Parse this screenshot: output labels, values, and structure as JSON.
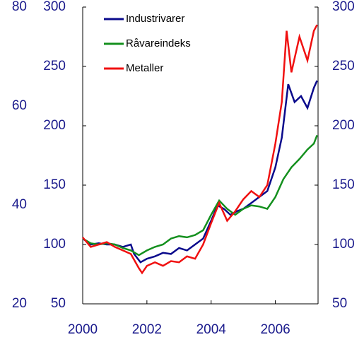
{
  "chart_data": {
    "type": "line",
    "xlim": [
      2000,
      2007.33
    ],
    "xticks": [
      2000,
      2002,
      2004,
      2006
    ],
    "ylim": [
      50,
      300
    ],
    "yticks": [
      50,
      100,
      150,
      200,
      250,
      300
    ],
    "y2lim": [
      50,
      300
    ],
    "y2ticks": [
      50,
      100,
      150,
      200,
      250,
      300
    ],
    "y3lim": [
      20,
      80
    ],
    "y3ticks": [
      20,
      40,
      60,
      80
    ],
    "legend": "upper left",
    "series": [
      {
        "name": "Industrivarer",
        "color": "#0a0a8c",
        "x": [
          2000,
          2000.25,
          2000.5,
          2000.75,
          2001,
          2001.25,
          2001.5,
          2001.6,
          2001.8,
          2002,
          2002.25,
          2002.5,
          2002.75,
          2003,
          2003.25,
          2003.5,
          2003.75,
          2004,
          2004.2,
          2004.4,
          2004.6,
          2004.8,
          2005,
          2005.25,
          2005.5,
          2005.75,
          2006,
          2006.2,
          2006.4,
          2006.6,
          2006.8,
          2007,
          2007.2,
          2007.3
        ],
        "values": [
          105,
          100,
          101,
          100,
          100,
          98,
          100,
          92,
          85,
          88,
          90,
          93,
          92,
          97,
          95,
          100,
          105,
          120,
          133,
          130,
          125,
          128,
          130,
          135,
          140,
          145,
          165,
          190,
          235,
          220,
          225,
          215,
          232,
          238
        ]
      },
      {
        "name": "Råvareindeks",
        "color": "#14901e",
        "x": [
          2000,
          2000.25,
          2000.5,
          2000.75,
          2001,
          2001.25,
          2001.5,
          2001.75,
          2002,
          2002.25,
          2002.5,
          2002.75,
          2003,
          2003.25,
          2003.5,
          2003.75,
          2004,
          2004.25,
          2004.5,
          2004.75,
          2005,
          2005.25,
          2005.5,
          2005.75,
          2006,
          2006.25,
          2006.5,
          2006.75,
          2007,
          2007.2,
          2007.3
        ],
        "values": [
          105,
          101,
          100,
          101,
          100,
          97,
          95,
          91,
          95,
          98,
          100,
          105,
          107,
          106,
          108,
          112,
          125,
          137,
          130,
          125,
          130,
          133,
          132,
          130,
          140,
          155,
          165,
          172,
          180,
          185,
          192
        ]
      },
      {
        "name": "Metaller",
        "color": "#f01010",
        "x": [
          2000,
          2000.25,
          2000.5,
          2000.75,
          2001,
          2001.25,
          2001.5,
          2001.75,
          2001.85,
          2002,
          2002.25,
          2002.5,
          2002.75,
          2003,
          2003.25,
          2003.5,
          2003.75,
          2004,
          2004.25,
          2004.5,
          2004.75,
          2005,
          2005.25,
          2005.5,
          2005.75,
          2006,
          2006.2,
          2006.35,
          2006.5,
          2006.75,
          2007,
          2007.2,
          2007.3
        ],
        "values": [
          106,
          98,
          100,
          102,
          98,
          95,
          92,
          80,
          76,
          82,
          85,
          82,
          86,
          85,
          90,
          88,
          100,
          118,
          135,
          120,
          128,
          138,
          145,
          140,
          150,
          185,
          220,
          280,
          245,
          275,
          255,
          280,
          285
        ]
      }
    ]
  }
}
